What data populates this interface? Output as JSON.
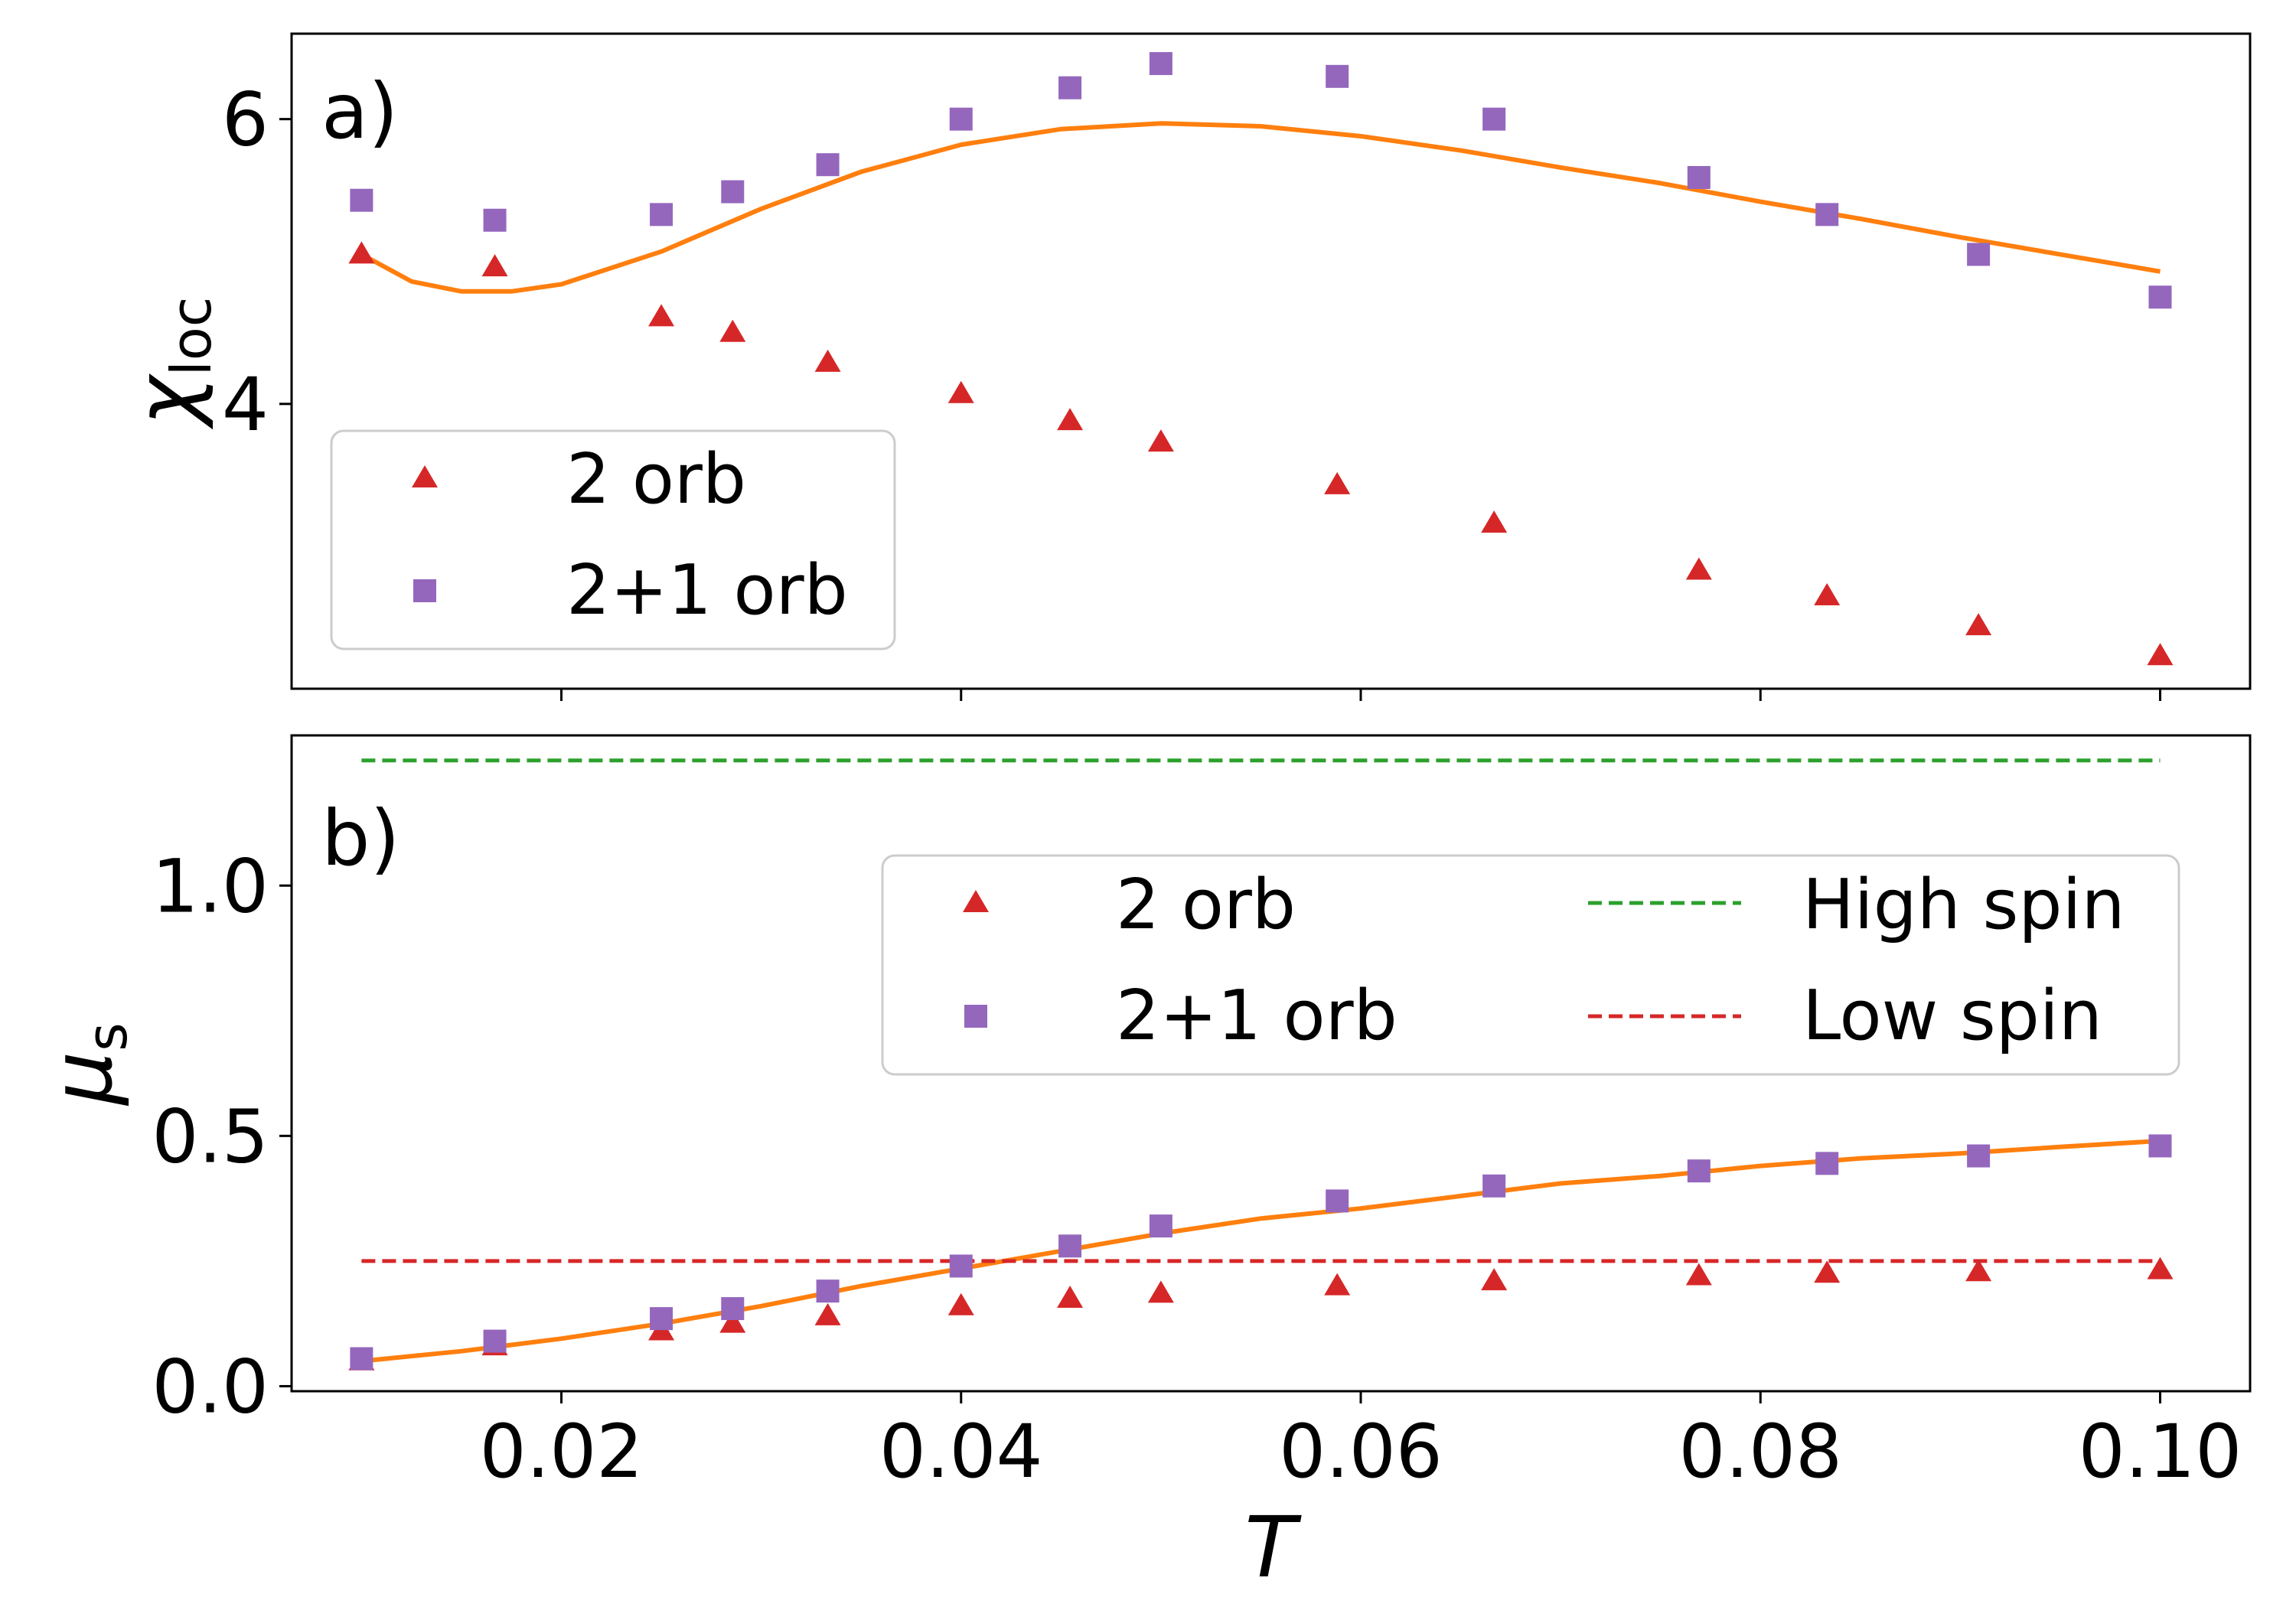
{
  "chart_data": [
    {
      "type": "scatter",
      "panel_label": "a)",
      "ylabel_symbol": "χ",
      "ylabel_sub": "loc",
      "xlabel": "",
      "xlim": [
        0.0065,
        0.1045
      ],
      "ylim": [
        2.0,
        6.6
      ],
      "xticks": [
        0.02,
        0.04,
        0.06,
        0.08,
        0.1
      ],
      "yticks": [
        {
          "v": 4,
          "label": "4"
        },
        {
          "v": 6,
          "label": "6"
        }
      ],
      "legend": {
        "position": "lower-left",
        "entries": [
          "2 orb",
          "2+1 orb"
        ]
      },
      "series": [
        {
          "name": "2 orb",
          "marker": "triangle",
          "color": "#d62728",
          "x": [
            0.01,
            0.01667,
            0.025,
            0.02857,
            0.03333,
            0.04,
            0.04545,
            0.05,
            0.05882,
            0.06667,
            0.07692,
            0.08333,
            0.09091,
            0.1
          ],
          "y": [
            5.05,
            4.96,
            4.61,
            4.5,
            4.29,
            4.07,
            3.88,
            3.73,
            3.43,
            3.16,
            2.83,
            2.65,
            2.44,
            2.23
          ]
        },
        {
          "name": "2+1 orb",
          "marker": "square",
          "color": "#9467bd",
          "x": [
            0.01,
            0.01667,
            0.025,
            0.02857,
            0.03333,
            0.04,
            0.04545,
            0.05,
            0.05882,
            0.06667,
            0.07692,
            0.08333,
            0.09091,
            0.1
          ],
          "y": [
            5.43,
            5.29,
            5.33,
            5.49,
            5.68,
            6.0,
            6.22,
            6.39,
            6.3,
            6.0,
            5.59,
            5.33,
            5.05,
            4.75
          ]
        },
        {
          "name": "fit",
          "marker": "line",
          "color": "#ff7f0e",
          "x": [
            0.01,
            0.0125,
            0.015,
            0.0175,
            0.02,
            0.025,
            0.03,
            0.035,
            0.04,
            0.045,
            0.05,
            0.055,
            0.06,
            0.065,
            0.07,
            0.075,
            0.08,
            0.085,
            0.09,
            0.095,
            0.1
          ],
          "y": [
            5.05,
            4.86,
            4.79,
            4.79,
            4.84,
            5.07,
            5.37,
            5.63,
            5.82,
            5.93,
            5.97,
            5.95,
            5.88,
            5.78,
            5.66,
            5.55,
            5.42,
            5.3,
            5.17,
            5.05,
            4.93
          ]
        }
      ]
    },
    {
      "type": "scatter",
      "panel_label": "b)",
      "ylabel_symbol": "μ",
      "ylabel_sub": "s",
      "xlabel": "T",
      "xlim": [
        0.0065,
        0.1045
      ],
      "ylim": [
        -0.01,
        1.3
      ],
      "xticks": [
        {
          "v": 0.02,
          "label": "0.02"
        },
        {
          "v": 0.04,
          "label": "0.04"
        },
        {
          "v": 0.06,
          "label": "0.06"
        },
        {
          "v": 0.08,
          "label": "0.08"
        },
        {
          "v": 0.1,
          "label": "0.10"
        }
      ],
      "yticks": [
        {
          "v": 0.0,
          "label": "0.0"
        },
        {
          "v": 0.5,
          "label": "0.5"
        },
        {
          "v": 1.0,
          "label": "1.0"
        }
      ],
      "legend": {
        "position": "center-right",
        "entries": [
          "2 orb",
          "2+1 orb",
          "High spin",
          "Low spin"
        ]
      },
      "series": [
        {
          "name": "2 orb",
          "marker": "triangle",
          "color": "#d62728",
          "x": [
            0.01,
            0.01667,
            0.025,
            0.02857,
            0.03333,
            0.04,
            0.04545,
            0.05,
            0.05882,
            0.06667,
            0.07692,
            0.08333,
            0.09091,
            0.1
          ],
          "y": [
            0.05,
            0.08,
            0.11,
            0.125,
            0.14,
            0.16,
            0.175,
            0.185,
            0.2,
            0.21,
            0.22,
            0.225,
            0.228,
            0.232
          ]
        },
        {
          "name": "2+1 orb",
          "marker": "square",
          "color": "#9467bd",
          "x": [
            0.01,
            0.01667,
            0.025,
            0.02857,
            0.03333,
            0.04,
            0.04545,
            0.05,
            0.05882,
            0.06667,
            0.07692,
            0.08333,
            0.09091,
            0.1
          ],
          "y": [
            0.055,
            0.09,
            0.135,
            0.155,
            0.19,
            0.24,
            0.28,
            0.32,
            0.37,
            0.4,
            0.43,
            0.445,
            0.46,
            0.48
          ]
        },
        {
          "name": "fit",
          "marker": "line",
          "color": "#ff7f0e",
          "x": [
            0.01,
            0.015,
            0.02,
            0.025,
            0.03,
            0.035,
            0.04,
            0.045,
            0.05,
            0.055,
            0.06,
            0.065,
            0.07,
            0.075,
            0.08,
            0.085,
            0.09,
            0.095,
            0.1
          ],
          "y": [
            0.05,
            0.07,
            0.095,
            0.125,
            0.16,
            0.2,
            0.235,
            0.27,
            0.305,
            0.335,
            0.355,
            0.38,
            0.405,
            0.42,
            0.44,
            0.455,
            0.465,
            0.478,
            0.49
          ]
        },
        {
          "name": "High spin",
          "marker": "dashed",
          "color": "#2ca02c",
          "x": [
            0.01,
            0.1
          ],
          "y": [
            1.25,
            1.25
          ]
        },
        {
          "name": "Low spin",
          "marker": "dashed",
          "color": "#d62728",
          "x": [
            0.01,
            0.1
          ],
          "y": [
            0.25,
            0.25
          ]
        }
      ]
    }
  ]
}
